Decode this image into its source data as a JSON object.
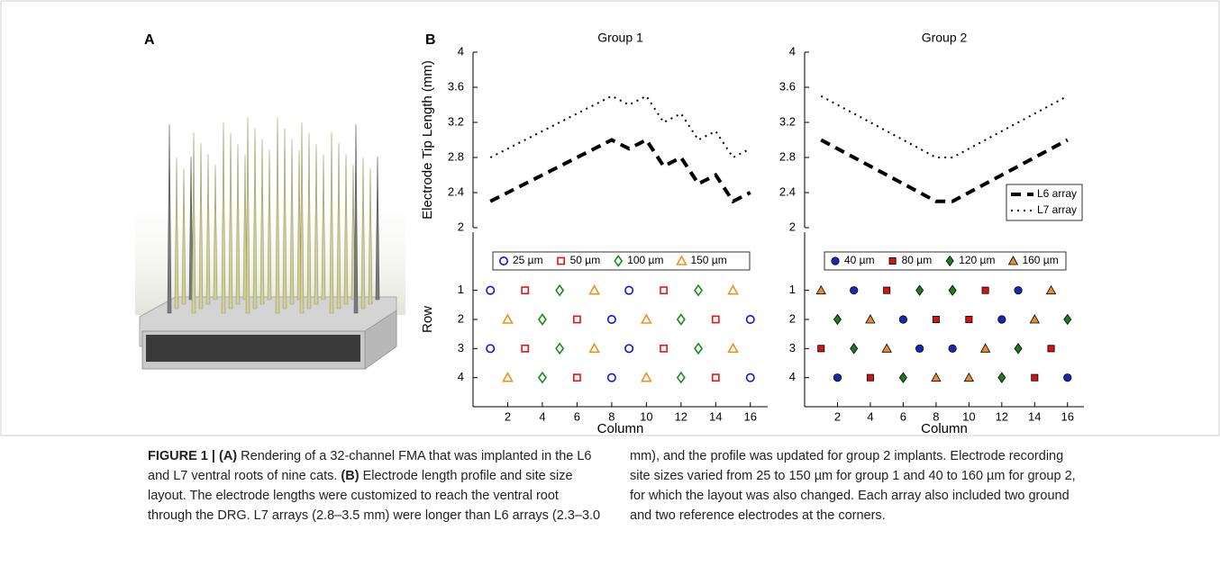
{
  "panels": {
    "a": "A",
    "b": "B"
  },
  "chart_data": [
    {
      "type": "line",
      "title": "Group 1",
      "ylabel": "Electrode Tip Length (mm)",
      "x": [
        1,
        2,
        3,
        4,
        5,
        6,
        7,
        8,
        9,
        10,
        11,
        12,
        13,
        14,
        15,
        16
      ],
      "xlim": [
        0,
        17
      ],
      "ylim": [
        2,
        4
      ],
      "yticks": [
        2,
        2.4,
        2.8,
        3.2,
        3.6,
        4
      ],
      "series": [
        {
          "name": "L6 array",
          "color": "#000000",
          "dash": "dashed",
          "values": [
            2.3,
            2.4,
            2.5,
            2.6,
            2.7,
            2.8,
            2.9,
            3.0,
            2.9,
            3.0,
            2.7,
            2.8,
            2.5,
            2.6,
            2.3,
            2.4
          ]
        },
        {
          "name": "L7 array",
          "color": "#000000",
          "dash": "dotted",
          "values": [
            2.8,
            2.9,
            3.0,
            3.1,
            3.2,
            3.3,
            3.4,
            3.5,
            3.4,
            3.5,
            3.2,
            3.3,
            3.0,
            3.1,
            2.8,
            2.9
          ]
        }
      ]
    },
    {
      "type": "line",
      "title": "Group 2",
      "legend": "lower right",
      "x": [
        1,
        2,
        3,
        4,
        5,
        6,
        7,
        8,
        9,
        10,
        11,
        12,
        13,
        14,
        15,
        16
      ],
      "xlim": [
        0,
        17
      ],
      "ylim": [
        2,
        4
      ],
      "yticks": [
        2,
        2.4,
        2.8,
        3.2,
        3.6,
        4
      ],
      "series": [
        {
          "name": "L6 array",
          "color": "#000000",
          "dash": "dashed",
          "values": [
            3.0,
            2.9,
            2.8,
            2.7,
            2.6,
            2.5,
            2.4,
            2.3,
            2.3,
            2.4,
            2.5,
            2.6,
            2.7,
            2.8,
            2.9,
            3.0
          ]
        },
        {
          "name": "L7 array",
          "color": "#000000",
          "dash": "dotted",
          "values": [
            3.5,
            3.4,
            3.3,
            3.2,
            3.1,
            3.0,
            2.9,
            2.8,
            2.8,
            2.9,
            3.0,
            3.1,
            3.2,
            3.3,
            3.4,
            3.5
          ]
        }
      ]
    },
    {
      "type": "scatter",
      "xlabel": "Column",
      "ylabel": "Row",
      "legend": "top",
      "filled": false,
      "xlim": [
        0,
        17
      ],
      "xticks": [
        2,
        4,
        6,
        8,
        10,
        12,
        14,
        16
      ],
      "ylim": [
        -1,
        5
      ],
      "y_reverse": true,
      "yticks": [
        1,
        2,
        3,
        4
      ],
      "series": [
        {
          "name": "25 µm",
          "color": "#0a14e6",
          "marker": "circle",
          "x": [
            1,
            9,
            8,
            16,
            1,
            9,
            8,
            16
          ],
          "y": [
            1,
            1,
            2,
            2,
            3,
            3,
            4,
            4
          ]
        },
        {
          "name": "50 µm",
          "color": "#e61414",
          "marker": "square",
          "x": [
            3,
            11,
            6,
            14,
            3,
            11,
            6,
            14
          ],
          "y": [
            1,
            1,
            2,
            2,
            3,
            3,
            4,
            4
          ]
        },
        {
          "name": "100 µm",
          "color": "#1a8c1a",
          "marker": "diamond",
          "x": [
            5,
            13,
            4,
            12,
            5,
            13,
            4,
            12
          ],
          "y": [
            1,
            1,
            2,
            2,
            3,
            3,
            4,
            4
          ]
        },
        {
          "name": "150 µm",
          "color": "#f0901e",
          "marker": "triangle",
          "x": [
            7,
            15,
            2,
            10,
            7,
            15,
            2,
            10
          ],
          "y": [
            1,
            1,
            2,
            2,
            3,
            3,
            4,
            4
          ]
        }
      ]
    },
    {
      "type": "scatter",
      "xlabel": "Column",
      "legend": "top",
      "filled": true,
      "xlim": [
        0,
        17
      ],
      "xticks": [
        2,
        4,
        6,
        8,
        10,
        12,
        14,
        16
      ],
      "ylim": [
        -1,
        5
      ],
      "y_reverse": true,
      "yticks": [
        1,
        2,
        3,
        4
      ],
      "series": [
        {
          "name": "40 µm",
          "color": "#1428b4",
          "marker": "circle",
          "x": [
            3,
            13,
            6,
            12,
            7,
            9,
            2,
            16
          ],
          "y": [
            1,
            1,
            2,
            2,
            3,
            3,
            4,
            4
          ]
        },
        {
          "name": "80 µm",
          "color": "#d21414",
          "marker": "square",
          "x": [
            5,
            11,
            8,
            10,
            1,
            15,
            4,
            14
          ],
          "y": [
            1,
            1,
            2,
            2,
            3,
            3,
            4,
            4
          ]
        },
        {
          "name": "120 µm",
          "color": "#1e7a1e",
          "marker": "diamond",
          "x": [
            7,
            9,
            2,
            16,
            3,
            13,
            6,
            12
          ],
          "y": [
            1,
            1,
            2,
            2,
            3,
            3,
            4,
            4
          ]
        },
        {
          "name": "160 µm",
          "color": "#e68c32",
          "marker": "triangle",
          "x": [
            1,
            15,
            4,
            14,
            5,
            11,
            8,
            10
          ],
          "y": [
            1,
            1,
            2,
            2,
            3,
            3,
            4,
            4
          ]
        }
      ]
    }
  ],
  "caption": {
    "label": "FIGURE 1 |",
    "a_label": "(A)",
    "a_text": "Rendering of a 32-channel FMA that was implanted in the L6 and L7 ventral roots of nine cats.",
    "b_label": "(B)",
    "b_text": "Electrode length profile and site size layout. The electrode lengths were customized to reach the ventral root through the DRG. L7 arrays (2.8–3.5 mm) were longer than L6 arrays (2.3–3.0 mm), and the profile was updated for group 2 implants. Electrode recording site sizes varied from 25 to 150 µm for group 1 and 40 to 160 µm for group 2, for which the layout was also changed. Each array also included two ground and two reference electrodes at the corners."
  }
}
